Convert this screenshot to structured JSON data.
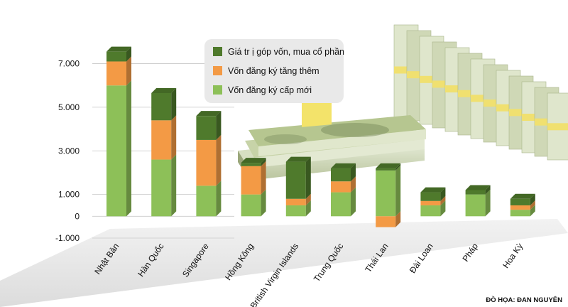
{
  "chart_data": {
    "type": "bar",
    "stacked": true,
    "categories": [
      "Nhật Bản",
      "Hàn Quốc",
      "Singapore",
      "Hồng Kông",
      "British Virgin Islands",
      "Trung Quốc",
      "Thái Lan",
      "Đài Loan",
      "Pháp",
      "Hoa Kỳ"
    ],
    "series": [
      {
        "name": "Vốn đăng ký cấp mới",
        "color": "#8dc058",
        "values": [
          6000,
          2600,
          1400,
          1000,
          500,
          1100,
          2100,
          500,
          1000,
          300
        ]
      },
      {
        "name": "Vốn đăng ký tăng thêm",
        "color": "#f39a45",
        "values": [
          1100,
          1800,
          2100,
          1300,
          300,
          500,
          -500,
          200,
          0,
          200
        ]
      },
      {
        "name": "Giá tr ị góp vốn, mua cổ phần",
        "color": "#4f7a2c",
        "values": [
          450,
          1250,
          1100,
          150,
          1700,
          600,
          100,
          400,
          200,
          300
        ]
      }
    ],
    "legend_order": [
      2,
      1,
      0
    ],
    "yticks": [
      -1000,
      0,
      1000,
      3000,
      5000,
      7000
    ],
    "ytick_labels": [
      "-1.000",
      "0",
      "1.000",
      "3.000",
      "5.000",
      "7.000"
    ],
    "ylim": [
      -1000,
      7800
    ],
    "legend_position": "top-center",
    "credit": "ĐỒ HỌA: ĐAN NGUYÊN"
  },
  "colors": {
    "new": "#8dc058",
    "increase": "#f39a45",
    "contribution": "#4f7a2c",
    "floor": "#e6e6e6",
    "legend_bg": "#e9e9e9"
  },
  "decoration": "dollar-stacks-icon"
}
